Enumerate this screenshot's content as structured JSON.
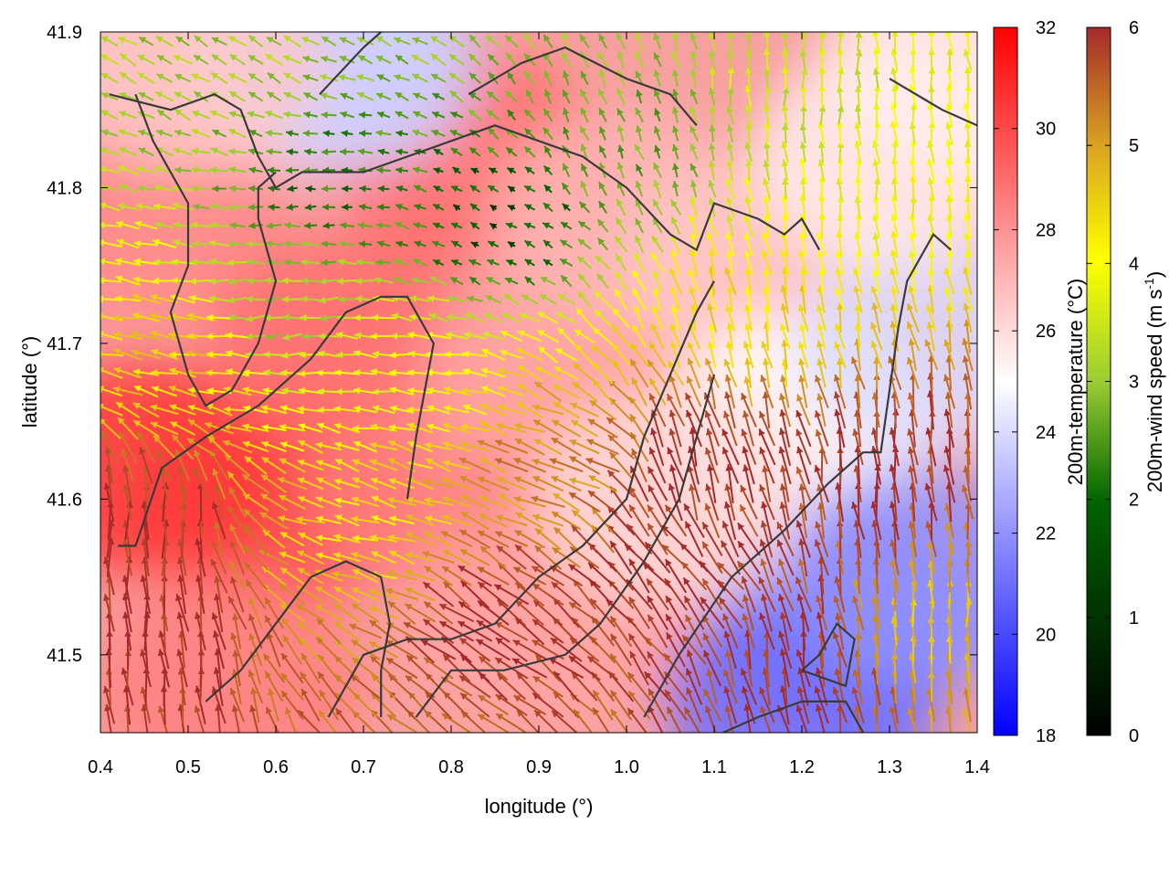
{
  "chart_data": {
    "type": "heatmap",
    "overlay": "wind vector field with terrain contour lines",
    "xlabel": "longitude (°)",
    "ylabel": "latitude (°)",
    "xlim": [
      0.4,
      1.4
    ],
    "ylim": [
      41.45,
      41.9
    ],
    "xticks": [
      "0.4",
      "0.5",
      "0.6",
      "0.7",
      "0.8",
      "0.9",
      "1.0",
      "1.1",
      "1.2",
      "1.3",
      "1.4"
    ],
    "yticks": [
      "41.5",
      "41.6",
      "41.7",
      "41.8",
      "41.9"
    ],
    "colorbars": [
      {
        "label": "200m-temperature (°C)",
        "range": [
          18,
          32
        ],
        "ticks": [
          "18",
          "20",
          "22",
          "24",
          "26",
          "28",
          "30",
          "32"
        ],
        "colors": [
          "#0000ff",
          "#ffffff",
          "#ff0000"
        ]
      },
      {
        "label_main": "200m-wind speed (m s",
        "label_sup": "-1",
        "label_close": ")",
        "range": [
          0,
          6
        ],
        "ticks": [
          "0",
          "1",
          "2",
          "3",
          "4",
          "5",
          "6"
        ],
        "colors": [
          "#000000",
          "#006400",
          "#9acd32",
          "#ffff00",
          "#daa520",
          "#a52a2a"
        ]
      }
    ],
    "temperature_regions": [
      {
        "lon": 0.47,
        "lat": 41.78,
        "t": 28.2
      },
      {
        "lon": 0.6,
        "lat": 41.6,
        "t": 30.0
      },
      {
        "lon": 0.45,
        "lat": 41.62,
        "t": 30.5
      },
      {
        "lon": 0.68,
        "lat": 41.7,
        "t": 29.0
      },
      {
        "lon": 0.82,
        "lat": 41.82,
        "t": 29.0
      },
      {
        "lon": 0.8,
        "lat": 41.6,
        "t": 28.5
      },
      {
        "lon": 0.92,
        "lat": 41.68,
        "t": 27.5
      },
      {
        "lon": 0.9,
        "lat": 41.52,
        "t": 27.5
      },
      {
        "lon": 1.0,
        "lat": 41.78,
        "t": 27.0
      },
      {
        "lon": 1.15,
        "lat": 41.75,
        "t": 26.5
      },
      {
        "lon": 1.2,
        "lat": 41.65,
        "t": 25.0
      },
      {
        "lon": 1.25,
        "lat": 41.52,
        "t": 21.5
      },
      {
        "lon": 1.2,
        "lat": 41.47,
        "t": 21.0
      },
      {
        "lon": 1.33,
        "lat": 41.55,
        "t": 22.0
      },
      {
        "lon": 1.35,
        "lat": 41.7,
        "t": 24.0
      },
      {
        "lon": 1.3,
        "lat": 41.82,
        "t": 25.5
      },
      {
        "lon": 0.65,
        "lat": 41.88,
        "t": 25.0
      },
      {
        "lon": 0.68,
        "lat": 41.88,
        "t": 23.5
      },
      {
        "lon": 0.5,
        "lat": 41.88,
        "t": 26.5
      },
      {
        "lon": 1.38,
        "lat": 41.88,
        "t": 25.5
      },
      {
        "lon": 1.05,
        "lat": 41.6,
        "t": 26.0
      },
      {
        "lon": 0.55,
        "lat": 41.48,
        "t": 28.5
      }
    ],
    "wind_regions": [
      {
        "lon": 0.65,
        "lat": 41.8,
        "speed": 1.5,
        "dir": 180
      },
      {
        "lon": 0.85,
        "lat": 41.78,
        "speed": 1.0,
        "dir": 150
      },
      {
        "lon": 1.0,
        "lat": 41.83,
        "speed": 2.0,
        "dir": 110
      },
      {
        "lon": 0.55,
        "lat": 41.88,
        "speed": 2.5,
        "dir": 150
      },
      {
        "lon": 0.6,
        "lat": 41.72,
        "speed": 2.5,
        "dir": 185
      },
      {
        "lon": 0.75,
        "lat": 41.68,
        "speed": 3.5,
        "dir": 175
      },
      {
        "lon": 0.5,
        "lat": 41.7,
        "speed": 4.2,
        "dir": 170
      },
      {
        "lon": 0.7,
        "lat": 41.58,
        "speed": 4.0,
        "dir": 165
      },
      {
        "lon": 0.45,
        "lat": 41.58,
        "speed": 6.0,
        "dir": 92
      },
      {
        "lon": 0.45,
        "lat": 41.5,
        "speed": 6.0,
        "dir": 95
      },
      {
        "lon": 0.85,
        "lat": 41.52,
        "speed": 6.0,
        "dir": 145
      },
      {
        "lon": 1.05,
        "lat": 41.55,
        "speed": 6.0,
        "dir": 130
      },
      {
        "lon": 1.1,
        "lat": 41.62,
        "speed": 6.0,
        "dir": 105
      },
      {
        "lon": 1.2,
        "lat": 41.5,
        "speed": 6.0,
        "dir": 100
      },
      {
        "lon": 1.3,
        "lat": 41.62,
        "speed": 6.0,
        "dir": 95
      },
      {
        "lon": 1.15,
        "lat": 41.72,
        "speed": 4.0,
        "dir": 100
      },
      {
        "lon": 1.3,
        "lat": 41.8,
        "speed": 3.5,
        "dir": 95
      },
      {
        "lon": 1.35,
        "lat": 41.52,
        "speed": 4.5,
        "dir": 90
      },
      {
        "lon": 0.9,
        "lat": 41.62,
        "speed": 5.0,
        "dir": 160
      },
      {
        "lon": 1.2,
        "lat": 41.86,
        "speed": 3.0,
        "dir": 90
      }
    ],
    "contours": [
      [
        [
          0.41,
          41.86
        ],
        [
          0.48,
          41.85
        ],
        [
          0.53,
          41.86
        ],
        [
          0.56,
          41.85
        ],
        [
          0.58,
          41.82
        ],
        [
          0.6,
          41.8
        ],
        [
          0.63,
          41.81
        ],
        [
          0.7,
          41.81
        ],
        [
          0.75,
          41.82
        ],
        [
          0.8,
          41.83
        ],
        [
          0.85,
          41.84
        ],
        [
          0.9,
          41.83
        ],
        [
          0.95,
          41.82
        ],
        [
          1.0,
          41.8
        ],
        [
          1.05,
          41.77
        ],
        [
          1.08,
          41.76
        ],
        [
          1.1,
          41.79
        ],
        [
          1.15,
          41.78
        ],
        [
          1.18,
          41.77
        ],
        [
          1.2,
          41.78
        ],
        [
          1.22,
          41.76
        ]
      ],
      [
        [
          0.44,
          41.86
        ],
        [
          0.46,
          41.83
        ],
        [
          0.48,
          41.81
        ],
        [
          0.5,
          41.79
        ],
        [
          0.5,
          41.75
        ],
        [
          0.48,
          41.72
        ],
        [
          0.5,
          41.68
        ],
        [
          0.52,
          41.66
        ],
        [
          0.55,
          41.67
        ],
        [
          0.58,
          41.7
        ],
        [
          0.6,
          41.74
        ],
        [
          0.58,
          41.78
        ],
        [
          0.58,
          41.8
        ],
        [
          0.6,
          41.81
        ]
      ],
      [
        [
          0.42,
          41.57
        ],
        [
          0.44,
          41.57
        ],
        [
          0.47,
          41.62
        ],
        [
          0.52,
          41.64
        ],
        [
          0.58,
          41.66
        ],
        [
          0.64,
          41.69
        ],
        [
          0.68,
          41.72
        ],
        [
          0.72,
          41.73
        ],
        [
          0.75,
          41.73
        ],
        [
          0.78,
          41.7
        ],
        [
          0.77,
          41.67
        ],
        [
          0.76,
          41.64
        ],
        [
          0.75,
          41.6
        ]
      ],
      [
        [
          0.52,
          41.47
        ],
        [
          0.56,
          41.49
        ],
        [
          0.6,
          41.52
        ],
        [
          0.64,
          41.55
        ],
        [
          0.68,
          41.56
        ],
        [
          0.72,
          41.55
        ],
        [
          0.73,
          41.52
        ],
        [
          0.72,
          41.49
        ],
        [
          0.72,
          41.46
        ]
      ],
      [
        [
          0.66,
          41.46
        ],
        [
          0.7,
          41.5
        ],
        [
          0.75,
          41.51
        ],
        [
          0.8,
          41.51
        ],
        [
          0.85,
          41.52
        ],
        [
          0.9,
          41.55
        ],
        [
          0.95,
          41.57
        ],
        [
          1.0,
          41.6
        ],
        [
          1.02,
          41.64
        ],
        [
          1.05,
          41.68
        ],
        [
          1.08,
          41.72
        ],
        [
          1.1,
          41.74
        ]
      ],
      [
        [
          0.76,
          41.46
        ],
        [
          0.8,
          41.49
        ],
        [
          0.86,
          41.49
        ],
        [
          0.93,
          41.5
        ],
        [
          0.97,
          41.52
        ],
        [
          1.02,
          41.56
        ],
        [
          1.06,
          41.6
        ],
        [
          1.08,
          41.64
        ],
        [
          1.1,
          41.68
        ]
      ],
      [
        [
          1.02,
          41.46
        ],
        [
          1.06,
          41.5
        ],
        [
          1.12,
          41.55
        ],
        [
          1.18,
          41.58
        ],
        [
          1.23,
          41.61
        ],
        [
          1.27,
          41.63
        ],
        [
          1.29,
          41.63
        ],
        [
          1.3,
          41.67
        ],
        [
          1.31,
          41.71
        ],
        [
          1.32,
          41.74
        ],
        [
          1.35,
          41.77
        ],
        [
          1.37,
          41.76
        ]
      ],
      [
        [
          1.11,
          41.45
        ],
        [
          1.15,
          41.46
        ],
        [
          1.2,
          41.47
        ],
        [
          1.25,
          41.47
        ],
        [
          1.27,
          41.45
        ]
      ],
      [
        [
          1.2,
          41.49
        ],
        [
          1.25,
          41.48
        ],
        [
          1.26,
          41.51
        ],
        [
          1.24,
          41.52
        ],
        [
          1.22,
          41.5
        ],
        [
          1.2,
          41.49
        ]
      ],
      [
        [
          0.65,
          41.86
        ],
        [
          0.7,
          41.89
        ],
        [
          0.72,
          41.9
        ]
      ],
      [
        [
          1.3,
          41.87
        ],
        [
          1.36,
          41.85
        ],
        [
          1.4,
          41.84
        ]
      ],
      [
        [
          0.82,
          41.86
        ],
        [
          0.88,
          41.88
        ],
        [
          0.93,
          41.89
        ],
        [
          1.0,
          41.87
        ],
        [
          1.05,
          41.86
        ],
        [
          1.08,
          41.84
        ]
      ]
    ]
  }
}
